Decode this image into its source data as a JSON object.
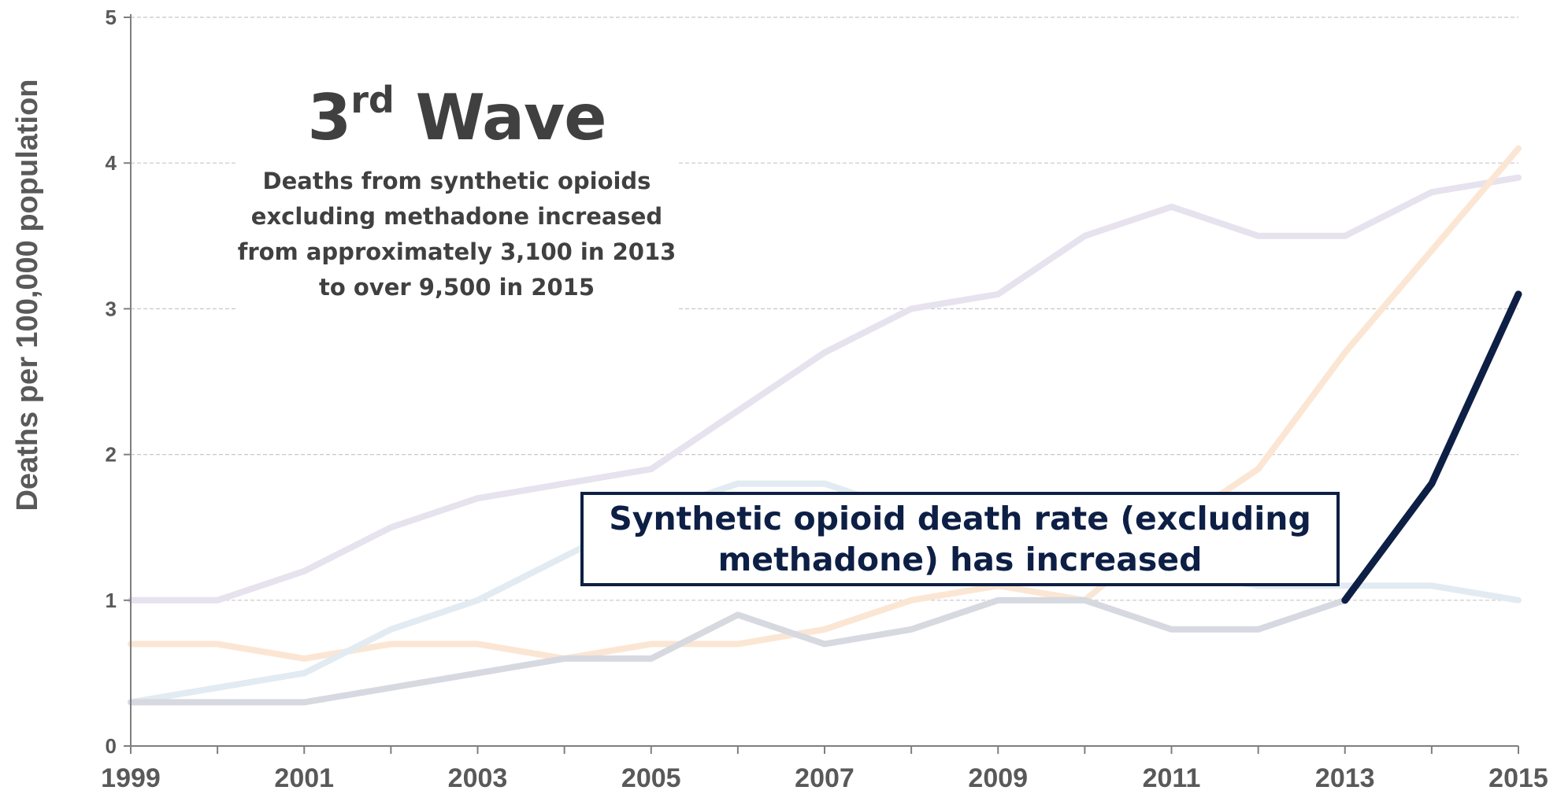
{
  "chart_data": {
    "type": "line",
    "title": "",
    "xlabel": "",
    "ylabel": "Deaths per 100,000 population",
    "x": [
      1999,
      2000,
      2001,
      2002,
      2003,
      2004,
      2005,
      2006,
      2007,
      2008,
      2009,
      2010,
      2011,
      2012,
      2013,
      2014,
      2015
    ],
    "xticks": [
      "1999",
      "2001",
      "2003",
      "2005",
      "2007",
      "2009",
      "2011",
      "2013",
      "2015"
    ],
    "yticks": [
      "0",
      "1",
      "2",
      "3",
      "4",
      "5"
    ],
    "xlim": [
      1999,
      2015
    ],
    "ylim": [
      0,
      5
    ],
    "grid": true,
    "series": [
      {
        "color": "#e6e2ee",
        "highlight": false,
        "values": [
          1.0,
          1.0,
          1.2,
          1.5,
          1.7,
          1.8,
          1.9,
          2.3,
          2.7,
          3.0,
          3.1,
          3.5,
          3.7,
          3.5,
          3.5,
          3.8,
          3.9
        ]
      },
      {
        "color": "#fbe6d4",
        "highlight": false,
        "values": [
          0.7,
          0.7,
          0.6,
          0.7,
          0.7,
          0.6,
          0.7,
          0.7,
          0.8,
          1.0,
          1.1,
          1.0,
          1.5,
          1.9,
          2.7,
          3.4,
          4.1
        ]
      },
      {
        "color": "#e2ebf1",
        "highlight": false,
        "values": [
          0.3,
          0.4,
          0.5,
          0.8,
          1.0,
          1.3,
          1.6,
          1.8,
          1.8,
          1.6,
          1.4,
          1.3,
          1.2,
          1.1,
          1.1,
          1.1,
          1.0
        ]
      },
      {
        "color": "#d7d9e0",
        "highlight": false,
        "values": [
          0.3,
          0.3,
          0.3,
          0.4,
          0.5,
          0.6,
          0.6,
          0.9,
          0.7,
          0.8,
          1.0,
          1.0,
          0.8,
          0.8,
          1.0,
          null,
          null
        ]
      },
      {
        "color": "#0d1f45",
        "highlight": true,
        "values": [
          null,
          null,
          null,
          null,
          null,
          null,
          null,
          null,
          null,
          null,
          null,
          null,
          null,
          null,
          1.0,
          1.8,
          3.1
        ]
      }
    ]
  },
  "wave_panel": {
    "title_main": "3",
    "title_sup": "rd",
    "title_rest": " Wave",
    "text": "Deaths from synthetic opioids excluding methadone increased from approximately 3,100 in 2013 to over 9,500 in 2015"
  },
  "callout": {
    "text": "Synthetic opioid death rate (excluding methadone) has increased"
  }
}
